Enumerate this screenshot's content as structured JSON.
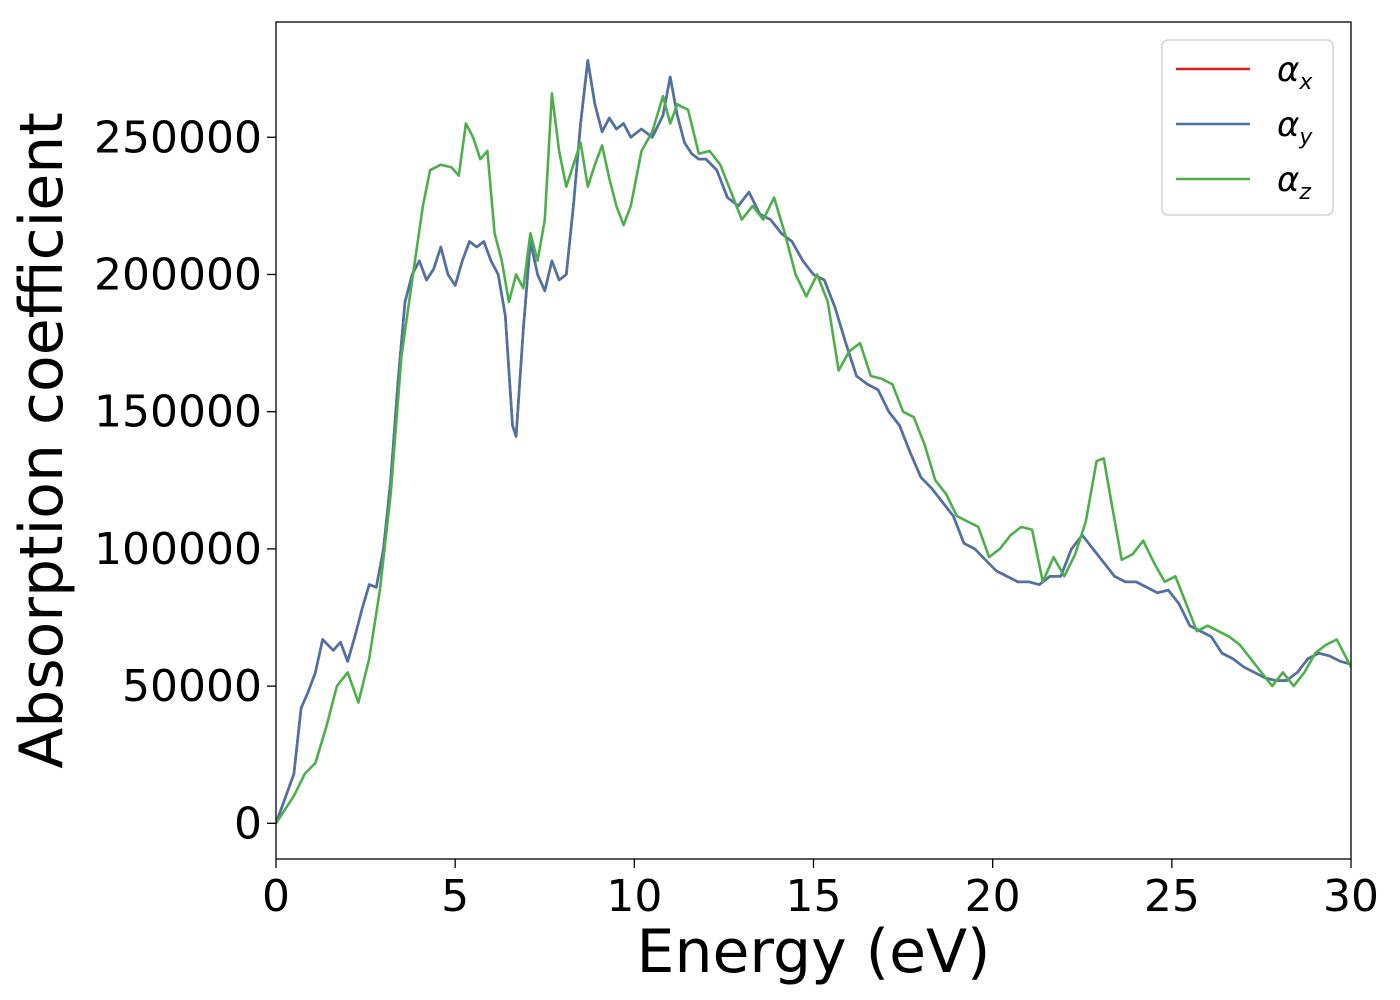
{
  "chart_data": {
    "type": "line",
    "title": "",
    "xlabel": "Energy (eV)",
    "ylabel": "Absorption coefficient",
    "xlim": [
      0,
      30
    ],
    "ylim": [
      -13000,
      292000
    ],
    "xticks": [
      0,
      5,
      10,
      15,
      20,
      25,
      30
    ],
    "yticks": [
      0,
      50000,
      100000,
      150000,
      200000,
      250000
    ],
    "grid": false,
    "legend_position": "top-right",
    "series": [
      {
        "name": "αx",
        "symbol": "α",
        "sub": "x",
        "color": "#e41a1c",
        "x": [
          0,
          0.5,
          0.7,
          0.9,
          1.1,
          1.3,
          1.6,
          1.8,
          2.0,
          2.2,
          2.4,
          2.6,
          2.8,
          3.0,
          3.2,
          3.4,
          3.6,
          3.8,
          4.0,
          4.2,
          4.4,
          4.6,
          4.8,
          5.0,
          5.2,
          5.4,
          5.6,
          5.8,
          6.0,
          6.2,
          6.4,
          6.6,
          6.7,
          6.9,
          7.1,
          7.3,
          7.5,
          7.7,
          7.9,
          8.1,
          8.3,
          8.5,
          8.7,
          8.9,
          9.1,
          9.3,
          9.5,
          9.7,
          9.9,
          10.2,
          10.5,
          10.8,
          11.0,
          11.2,
          11.4,
          11.6,
          11.8,
          12.0,
          12.3,
          12.6,
          12.9,
          13.2,
          13.5,
          13.8,
          14.1,
          14.4,
          14.7,
          15.0,
          15.3,
          15.6,
          15.9,
          16.2,
          16.5,
          16.8,
          17.1,
          17.4,
          17.7,
          18.0,
          18.3,
          18.6,
          18.9,
          19.2,
          19.5,
          19.8,
          20.1,
          20.4,
          20.7,
          21.0,
          21.3,
          21.6,
          21.9,
          22.2,
          22.5,
          22.8,
          23.1,
          23.4,
          23.7,
          24.0,
          24.3,
          24.6,
          24.9,
          25.2,
          25.5,
          25.8,
          26.1,
          26.4,
          26.7,
          27.0,
          27.3,
          27.6,
          27.9,
          28.2,
          28.5,
          28.8,
          29.1,
          29.4,
          29.7,
          30.0
        ],
        "y": [
          0,
          18000,
          42000,
          48000,
          55000,
          67000,
          63000,
          66000,
          59000,
          68000,
          78000,
          87000,
          86000,
          100000,
          125000,
          160000,
          190000,
          200000,
          205000,
          198000,
          202000,
          210000,
          200000,
          196000,
          205000,
          212000,
          210000,
          212000,
          205000,
          200000,
          185000,
          145000,
          141000,
          180000,
          212000,
          200000,
          194000,
          205000,
          198000,
          200000,
          225000,
          255000,
          278000,
          262000,
          252000,
          257000,
          253000,
          255000,
          250000,
          253000,
          250000,
          258000,
          272000,
          258000,
          248000,
          244000,
          242000,
          242000,
          238000,
          228000,
          225000,
          230000,
          222000,
          220000,
          215000,
          212000,
          205000,
          200000,
          198000,
          188000,
          175000,
          163000,
          160000,
          158000,
          150000,
          145000,
          135000,
          126000,
          122000,
          117000,
          112000,
          102000,
          100000,
          96000,
          92000,
          90000,
          88000,
          88000,
          87000,
          90000,
          90000,
          100000,
          105000,
          100000,
          95000,
          90000,
          88000,
          88000,
          86000,
          84000,
          85000,
          80000,
          72000,
          70000,
          68000,
          62000,
          60000,
          57000,
          55000,
          53000,
          52000,
          52000,
          55000,
          60000,
          62000,
          61000,
          59000,
          58000
        ]
      },
      {
        "name": "αy",
        "symbol": "α",
        "sub": "y",
        "color": "#4a74a8",
        "x": [
          0,
          0.5,
          0.7,
          0.9,
          1.1,
          1.3,
          1.6,
          1.8,
          2.0,
          2.2,
          2.4,
          2.6,
          2.8,
          3.0,
          3.2,
          3.4,
          3.6,
          3.8,
          4.0,
          4.2,
          4.4,
          4.6,
          4.8,
          5.0,
          5.2,
          5.4,
          5.6,
          5.8,
          6.0,
          6.2,
          6.4,
          6.6,
          6.7,
          6.9,
          7.1,
          7.3,
          7.5,
          7.7,
          7.9,
          8.1,
          8.3,
          8.5,
          8.7,
          8.9,
          9.1,
          9.3,
          9.5,
          9.7,
          9.9,
          10.2,
          10.5,
          10.8,
          11.0,
          11.2,
          11.4,
          11.6,
          11.8,
          12.0,
          12.3,
          12.6,
          12.9,
          13.2,
          13.5,
          13.8,
          14.1,
          14.4,
          14.7,
          15.0,
          15.3,
          15.6,
          15.9,
          16.2,
          16.5,
          16.8,
          17.1,
          17.4,
          17.7,
          18.0,
          18.3,
          18.6,
          18.9,
          19.2,
          19.5,
          19.8,
          20.1,
          20.4,
          20.7,
          21.0,
          21.3,
          21.6,
          21.9,
          22.2,
          22.5,
          22.8,
          23.1,
          23.4,
          23.7,
          24.0,
          24.3,
          24.6,
          24.9,
          25.2,
          25.5,
          25.8,
          26.1,
          26.4,
          26.7,
          27.0,
          27.3,
          27.6,
          27.9,
          28.2,
          28.5,
          28.8,
          29.1,
          29.4,
          29.7,
          30.0
        ],
        "y": [
          0,
          18000,
          42000,
          48000,
          55000,
          67000,
          63000,
          66000,
          59000,
          68000,
          78000,
          87000,
          86000,
          100000,
          125000,
          160000,
          190000,
          200000,
          205000,
          198000,
          202000,
          210000,
          200000,
          196000,
          205000,
          212000,
          210000,
          212000,
          205000,
          200000,
          185000,
          145000,
          141000,
          180000,
          212000,
          200000,
          194000,
          205000,
          198000,
          200000,
          225000,
          255000,
          278000,
          262000,
          252000,
          257000,
          253000,
          255000,
          250000,
          253000,
          250000,
          258000,
          272000,
          258000,
          248000,
          244000,
          242000,
          242000,
          238000,
          228000,
          225000,
          230000,
          222000,
          220000,
          215000,
          212000,
          205000,
          200000,
          198000,
          188000,
          175000,
          163000,
          160000,
          158000,
          150000,
          145000,
          135000,
          126000,
          122000,
          117000,
          112000,
          102000,
          100000,
          96000,
          92000,
          90000,
          88000,
          88000,
          87000,
          90000,
          90000,
          100000,
          105000,
          100000,
          95000,
          90000,
          88000,
          88000,
          86000,
          84000,
          85000,
          80000,
          72000,
          70000,
          68000,
          62000,
          60000,
          57000,
          55000,
          53000,
          52000,
          52000,
          55000,
          60000,
          62000,
          61000,
          59000,
          58000
        ]
      },
      {
        "name": "αz",
        "symbol": "α",
        "sub": "z",
        "color": "#4daf4a",
        "x": [
          0,
          0.5,
          0.8,
          1.1,
          1.4,
          1.7,
          2.0,
          2.3,
          2.6,
          2.9,
          3.2,
          3.5,
          3.8,
          4.1,
          4.3,
          4.6,
          4.9,
          5.1,
          5.3,
          5.5,
          5.7,
          5.9,
          6.1,
          6.3,
          6.5,
          6.7,
          6.9,
          7.1,
          7.3,
          7.5,
          7.7,
          7.9,
          8.1,
          8.3,
          8.5,
          8.7,
          8.9,
          9.1,
          9.3,
          9.5,
          9.7,
          9.9,
          10.2,
          10.5,
          10.8,
          11.0,
          11.2,
          11.5,
          11.8,
          12.1,
          12.4,
          12.7,
          13.0,
          13.3,
          13.6,
          13.9,
          14.2,
          14.5,
          14.8,
          15.1,
          15.4,
          15.7,
          16.0,
          16.3,
          16.6,
          16.9,
          17.2,
          17.5,
          17.8,
          18.1,
          18.4,
          18.7,
          19.0,
          19.3,
          19.6,
          19.9,
          20.2,
          20.5,
          20.8,
          21.1,
          21.4,
          21.7,
          22.0,
          22.3,
          22.6,
          22.9,
          23.1,
          23.3,
          23.6,
          23.9,
          24.2,
          24.5,
          24.8,
          25.1,
          25.4,
          25.7,
          26.0,
          26.3,
          26.6,
          26.9,
          27.2,
          27.5,
          27.8,
          28.1,
          28.4,
          28.7,
          29.0,
          29.3,
          29.6,
          30.0
        ],
        "y": [
          0,
          10000,
          18000,
          22000,
          35000,
          50000,
          55000,
          44000,
          60000,
          85000,
          120000,
          170000,
          198000,
          225000,
          238000,
          240000,
          239000,
          236000,
          255000,
          250000,
          242000,
          245000,
          215000,
          205000,
          190000,
          200000,
          195000,
          215000,
          205000,
          220000,
          266000,
          245000,
          232000,
          240000,
          248000,
          232000,
          240000,
          247000,
          235000,
          225000,
          218000,
          225000,
          245000,
          252000,
          265000,
          255000,
          262000,
          260000,
          244000,
          245000,
          240000,
          230000,
          220000,
          225000,
          220000,
          228000,
          215000,
          200000,
          192000,
          200000,
          190000,
          165000,
          172000,
          175000,
          163000,
          162000,
          160000,
          150000,
          148000,
          138000,
          125000,
          120000,
          112000,
          110000,
          108000,
          97000,
          100000,
          105000,
          108000,
          107000,
          88000,
          97000,
          90000,
          98000,
          110000,
          132000,
          133000,
          118000,
          96000,
          98000,
          103000,
          95000,
          88000,
          90000,
          80000,
          70000,
          72000,
          70000,
          68000,
          65000,
          60000,
          55000,
          50000,
          55000,
          50000,
          55000,
          62000,
          65000,
          67000,
          57000
        ]
      }
    ]
  }
}
